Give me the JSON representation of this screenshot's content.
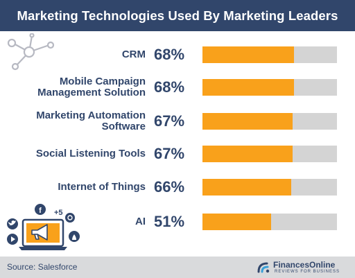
{
  "header": {
    "title": "Marketing Technologies Used By Marketing Leaders"
  },
  "chart_data": {
    "type": "bar",
    "orientation": "horizontal",
    "title": "Marketing Technologies Used By Marketing Leaders",
    "categories": [
      "CRM",
      "Mobile Campaign Management Solution",
      "Marketing Automation Software",
      "Social Listening Tools",
      "Internet of Things",
      "AI"
    ],
    "values": [
      68,
      68,
      67,
      67,
      66,
      51
    ],
    "value_labels": [
      "68%",
      "68%",
      "67%",
      "67%",
      "66%",
      "51%"
    ],
    "label_lines": [
      [
        "CRM"
      ],
      [
        "Mobile Campaign",
        "Management Solution"
      ],
      [
        "Marketing Automation",
        "Software"
      ],
      [
        "Social Listening Tools"
      ],
      [
        "Internet of Things"
      ],
      [
        "AI"
      ]
    ],
    "xlim": [
      0,
      100
    ],
    "unit": "%",
    "grid": false,
    "bar_color": "#f9a11b",
    "track_color": "#d4d4d4"
  },
  "footer": {
    "source": "Source: Salesforce",
    "brand": "FinancesOnline",
    "brand_tagline": "REVIEWS FOR BUSINESS"
  },
  "icons": {
    "social_count": "+5",
    "facebook_letter": "f"
  },
  "colors": {
    "header_bg": "#31466b",
    "text_navy": "#31466b",
    "accent_orange": "#f9a11b",
    "footer_bg": "#d9dadc",
    "network_gray": "#b7b9c2"
  }
}
